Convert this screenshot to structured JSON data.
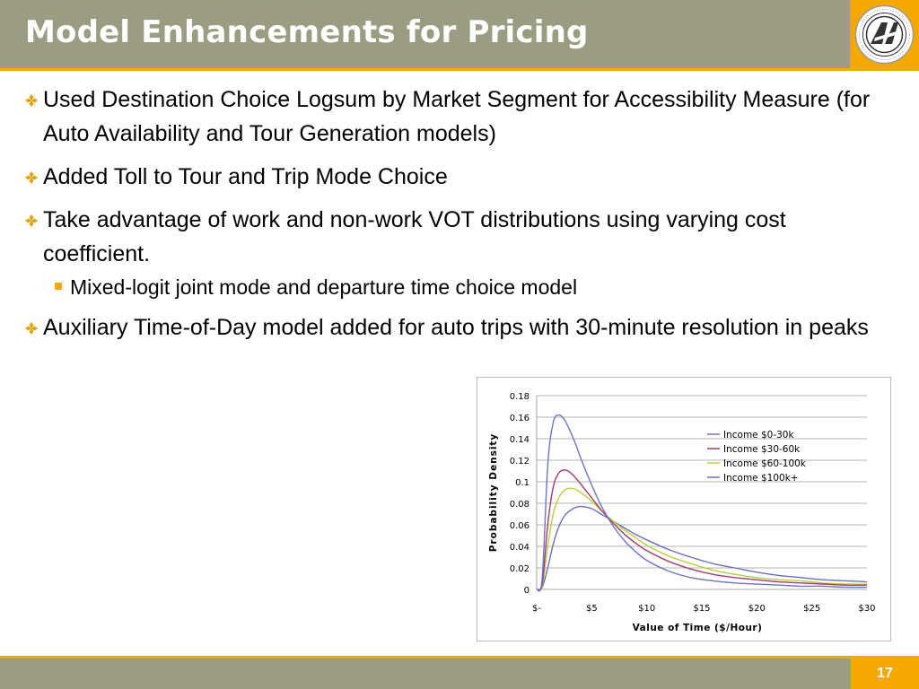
{
  "slide": {
    "title": "Model Enhancements for Pricing",
    "page_number": "17"
  },
  "bullets": [
    {
      "text": "Used Destination Choice Logsum by Market Segment for Accessibility Measure (for Auto Availability and Tour Generation models)"
    },
    {
      "text": "Added Toll to Tour and Trip Mode Choice"
    },
    {
      "text": "Take advantage of work and non-work VOT distributions using varying cost coefficient."
    },
    {
      "text": "Mixed-logit joint mode and departure time choice model",
      "level": 2
    },
    {
      "text": "Auxiliary Time-of-Day model added for auto trips with 30-minute resolution in peaks"
    }
  ],
  "colors": {
    "header": "#9b9d83",
    "accent": "#f5a800",
    "bullet_mark": "#e0a100"
  },
  "icons": {
    "logo": "san-francisco-county-transportation-authority-logo",
    "bullet": "four-diamond-bullet-icon",
    "sub_bullet": "orange-square-bullet"
  },
  "chart_data": {
    "type": "line",
    "title": "",
    "xlabel": "Value of Time ($/Hour)",
    "ylabel": "Probability Density",
    "xlim": [
      0,
      30
    ],
    "ylim": [
      0,
      0.18
    ],
    "x_ticks": [
      0,
      5,
      10,
      15,
      20,
      25,
      30
    ],
    "x_tick_labels": [
      "$-",
      "$5",
      "$10",
      "$15",
      "$20",
      "$25",
      "$30"
    ],
    "y_ticks": [
      0,
      0.02,
      0.04,
      0.06,
      0.08,
      0.1,
      0.12,
      0.14,
      0.16,
      0.18
    ],
    "y_tick_labels": [
      "0",
      "0.02",
      "0.04",
      "0.06",
      "0.08",
      "0.1",
      "0.12",
      "0.14",
      "0.16",
      "0.18"
    ],
    "grid": true,
    "legend_position": "top-right",
    "x": [
      0,
      0.5,
      1,
      1.5,
      2,
      2.5,
      3,
      3.5,
      4,
      5,
      6,
      7,
      8,
      9,
      10,
      12,
      14,
      16,
      18,
      20,
      22,
      24,
      26,
      28,
      30
    ],
    "series": [
      {
        "name": "Income $0-30k",
        "color": "#6f72c8",
        "values": [
          0,
          0.01,
          0.115,
          0.155,
          0.162,
          0.158,
          0.148,
          0.136,
          0.122,
          0.097,
          0.075,
          0.058,
          0.045,
          0.035,
          0.027,
          0.017,
          0.011,
          0.008,
          0.006,
          0.005,
          0.004,
          0.003,
          0.003,
          0.002,
          0.002
        ]
      },
      {
        "name": "Income $30-60k",
        "color": "#a63a6a",
        "values": [
          0,
          0.005,
          0.06,
          0.095,
          0.108,
          0.111,
          0.109,
          0.104,
          0.098,
          0.085,
          0.072,
          0.061,
          0.051,
          0.043,
          0.036,
          0.026,
          0.019,
          0.014,
          0.011,
          0.009,
          0.007,
          0.006,
          0.005,
          0.004,
          0.004
        ]
      },
      {
        "name": "Income $60-100k",
        "color": "#b4d23c",
        "values": [
          0,
          0.003,
          0.04,
          0.07,
          0.085,
          0.092,
          0.094,
          0.093,
          0.09,
          0.082,
          0.072,
          0.063,
          0.055,
          0.048,
          0.041,
          0.031,
          0.024,
          0.018,
          0.014,
          0.011,
          0.009,
          0.008,
          0.006,
          0.005,
          0.005
        ]
      },
      {
        "name": "Income $100k+",
        "color": "#6b6ec2",
        "values": [
          0,
          0.002,
          0.02,
          0.042,
          0.058,
          0.068,
          0.073,
          0.076,
          0.077,
          0.075,
          0.069,
          0.063,
          0.057,
          0.051,
          0.046,
          0.037,
          0.03,
          0.024,
          0.02,
          0.016,
          0.013,
          0.011,
          0.009,
          0.008,
          0.007
        ]
      }
    ]
  }
}
